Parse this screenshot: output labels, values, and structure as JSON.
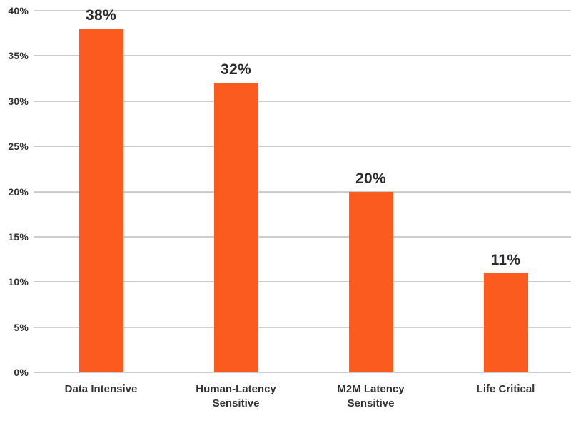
{
  "chart_data": {
    "type": "bar",
    "categories": [
      "Data Intensive",
      "Human-Latency Sensitive",
      "M2M Latency Sensitive",
      "Life Critical"
    ],
    "values": [
      38,
      32,
      20,
      11
    ],
    "data_labels": [
      "38%",
      "32%",
      "20%",
      "11%"
    ],
    "y_ticks": [
      "0%",
      "5%",
      "10%",
      "15%",
      "20%",
      "25%",
      "30%",
      "35%",
      "40%"
    ],
    "ylim": [
      0,
      40
    ],
    "y_tick_step": 5,
    "title": "",
    "xlabel": "",
    "ylabel": "",
    "grid": true,
    "legend": "none",
    "colors": {
      "bar": "#FB5B1E",
      "gridline": "#CDCDCD",
      "axis_text": "#333333",
      "data_label_text": "#2B2B2B",
      "background": "#FFFFFF"
    }
  }
}
